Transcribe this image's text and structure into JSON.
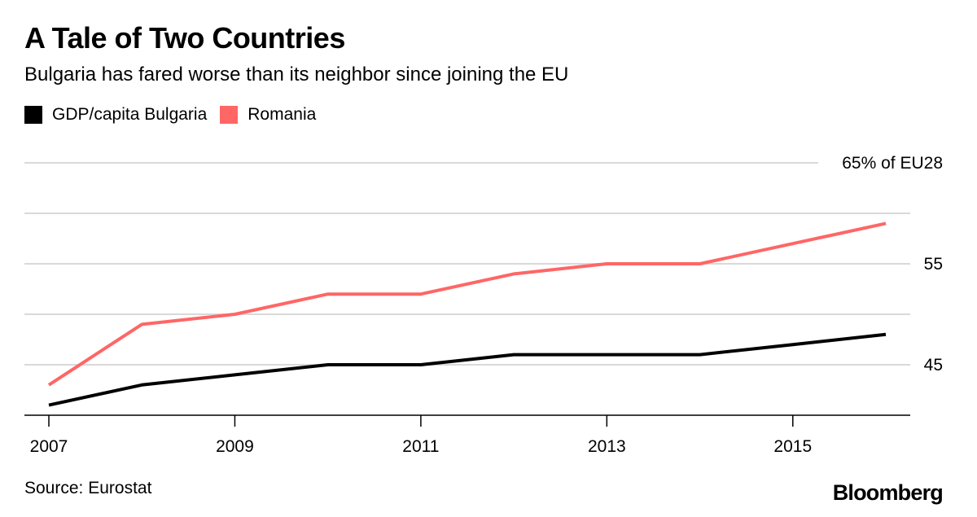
{
  "chart_data": {
    "type": "line",
    "title": "A Tale of Two Countries",
    "subtitle": "Bulgaria has fared worse than its neighbor since joining the EU",
    "x": [
      2007,
      2008,
      2009,
      2010,
      2011,
      2012,
      2013,
      2014,
      2015,
      2016
    ],
    "x_ticks": [
      2007,
      2009,
      2011,
      2013,
      2015
    ],
    "x_tick_labels": [
      "2007",
      "2009",
      "2011",
      "2013",
      "2015"
    ],
    "y_ticks": [
      45,
      55,
      65
    ],
    "y_tick_labels": [
      "45",
      "55",
      "65% of EU28"
    ],
    "ylim": [
      40,
      65
    ],
    "grid": true,
    "legend_position": "top-left",
    "series": [
      {
        "name": "GDP/capita Bulgaria",
        "color": "#000000",
        "values": [
          41,
          43,
          44,
          45,
          45,
          46,
          46,
          46,
          47,
          48
        ]
      },
      {
        "name": "Romania",
        "color": "#ff6666",
        "values": [
          43,
          49,
          50,
          52,
          52,
          54,
          55,
          55,
          57,
          59
        ]
      }
    ],
    "source": "Source: Eurostat",
    "brand": "Bloomberg"
  }
}
